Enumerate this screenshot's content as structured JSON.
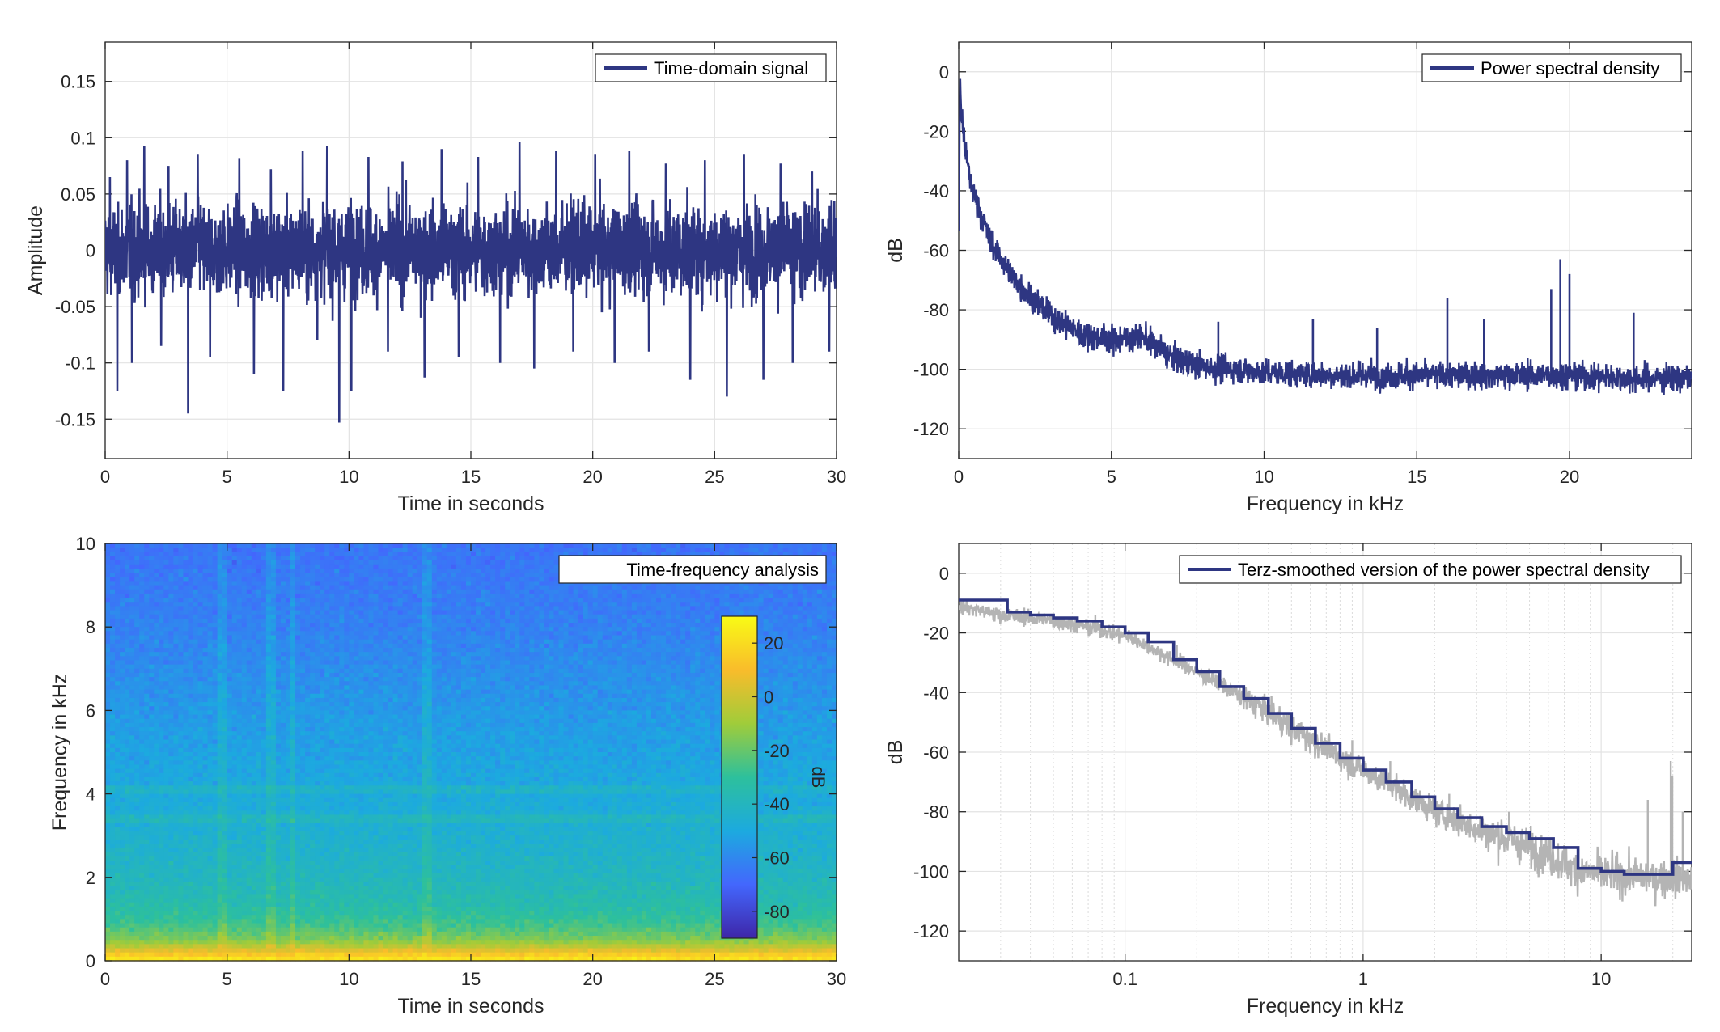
{
  "chart_data": [
    {
      "id": "time-domain",
      "type": "line",
      "xlabel": "Time in seconds",
      "ylabel": "Amplitude",
      "xlim": [
        0,
        30
      ],
      "ylim": [
        -0.185,
        0.185
      ],
      "xticks": [
        0,
        5,
        10,
        15,
        20,
        25,
        30
      ],
      "xtick_labels": [
        "0",
        "5",
        "10",
        "15",
        "20",
        "25",
        "30"
      ],
      "yticks": [
        0.15,
        0.1,
        0.05,
        0,
        -0.05,
        -0.1,
        -0.15
      ],
      "ytick_labels": [
        "0.15",
        "0.1",
        "0.05",
        "0",
        "-0.05",
        "-0.1",
        "-0.15"
      ],
      "grid": true,
      "legend": {
        "position": "top-right"
      },
      "series": [
        {
          "name": "Time-domain signal",
          "color": "#2e3682",
          "signal_std": 0.028,
          "peaks": [
            [
              0.2,
              0.065
            ],
            [
              0.5,
              -0.125
            ],
            [
              0.9,
              0.08
            ],
            [
              1.1,
              -0.1
            ],
            [
              1.6,
              0.093
            ],
            [
              2.3,
              -0.085
            ],
            [
              2.6,
              0.075
            ],
            [
              3.4,
              -0.145
            ],
            [
              3.8,
              0.085
            ],
            [
              4.3,
              -0.095
            ],
            [
              5.5,
              0.082
            ],
            [
              6.1,
              -0.11
            ],
            [
              6.8,
              0.072
            ],
            [
              7.3,
              -0.125
            ],
            [
              8.1,
              0.088
            ],
            [
              8.7,
              -0.08
            ],
            [
              9.1,
              0.093
            ],
            [
              9.6,
              -0.153
            ],
            [
              10.1,
              -0.125
            ],
            [
              10.8,
              0.083
            ],
            [
              11.6,
              -0.09
            ],
            [
              12.2,
              0.079
            ],
            [
              13.1,
              -0.113
            ],
            [
              13.8,
              0.09
            ],
            [
              14.5,
              -0.095
            ],
            [
              15.3,
              0.083
            ],
            [
              16.2,
              -0.1
            ],
            [
              17.0,
              0.096
            ],
            [
              17.6,
              -0.105
            ],
            [
              18.5,
              0.088
            ],
            [
              19.2,
              -0.09
            ],
            [
              20.1,
              0.085
            ],
            [
              20.9,
              -0.1
            ],
            [
              21.5,
              0.088
            ],
            [
              22.3,
              -0.09
            ],
            [
              23.0,
              0.077
            ],
            [
              24.0,
              -0.115
            ],
            [
              24.6,
              0.08
            ],
            [
              25.5,
              -0.13
            ],
            [
              26.2,
              0.085
            ],
            [
              27.0,
              -0.115
            ],
            [
              27.7,
              0.077
            ],
            [
              28.2,
              -0.1
            ],
            [
              29.0,
              0.07
            ],
            [
              29.7,
              -0.09
            ]
          ]
        }
      ]
    },
    {
      "id": "psd",
      "type": "line",
      "xlabel": "Frequency in kHz",
      "ylabel": "dB",
      "xlim": [
        0,
        24
      ],
      "ylim": [
        -130,
        10
      ],
      "xticks": [
        0,
        5,
        10,
        15,
        20
      ],
      "xtick_labels": [
        "0",
        "5",
        "10",
        "15",
        "20"
      ],
      "yticks": [
        0,
        -20,
        -40,
        -60,
        -80,
        -100,
        -120
      ],
      "ytick_labels": [
        "0",
        "-20",
        "-40",
        "-60",
        "-80",
        "-100",
        "-120"
      ],
      "grid": true,
      "legend": {
        "position": "top-right"
      },
      "series": [
        {
          "name": "Power spectral density",
          "color": "#2e3682",
          "envelope": [
            [
              0.0,
              -50
            ],
            [
              0.05,
              -5
            ],
            [
              0.1,
              -15
            ],
            [
              0.2,
              -25
            ],
            [
              0.4,
              -38
            ],
            [
              0.7,
              -47
            ],
            [
              1.0,
              -56
            ],
            [
              1.5,
              -65
            ],
            [
              2.0,
              -72
            ],
            [
              3.0,
              -82
            ],
            [
              4.0,
              -88
            ],
            [
              5.0,
              -90
            ],
            [
              6.0,
              -89
            ],
            [
              7.0,
              -96
            ],
            [
              8.0,
              -99
            ],
            [
              10.0,
              -101
            ],
            [
              12.0,
              -102
            ],
            [
              15.0,
              -102
            ],
            [
              18.0,
              -102
            ],
            [
              20.0,
              -102
            ],
            [
              22.0,
              -103
            ],
            [
              24.0,
              -103
            ]
          ],
          "spikes": [
            [
              3.5,
              -80
            ],
            [
              8.5,
              -84
            ],
            [
              11.6,
              -83
            ],
            [
              13.7,
              -86
            ],
            [
              16.0,
              -76
            ],
            [
              17.2,
              -83
            ],
            [
              19.4,
              -73
            ],
            [
              19.7,
              -63
            ],
            [
              20.0,
              -68
            ],
            [
              22.1,
              -81
            ]
          ]
        }
      ]
    },
    {
      "id": "spectrogram",
      "type": "heatmap",
      "xlabel": "Time in seconds",
      "ylabel": "Frequency in kHz",
      "xlim": [
        0,
        30
      ],
      "ylim": [
        0,
        10
      ],
      "xticks": [
        0,
        5,
        10,
        15,
        20,
        25,
        30
      ],
      "xtick_labels": [
        "0",
        "5",
        "10",
        "15",
        "20",
        "25",
        "30"
      ],
      "yticks": [
        10,
        8,
        6,
        4,
        2,
        0
      ],
      "ytick_labels": [
        "10",
        "8",
        "6",
        "4",
        "2",
        "0"
      ],
      "legend": {
        "position": "top-right"
      },
      "legend_label": "Time-frequency analysis",
      "colorbar": {
        "label": "dB",
        "range": [
          -90,
          30
        ],
        "ticks": [
          20,
          0,
          -20,
          -40,
          -60,
          -80
        ],
        "tick_labels": [
          "20",
          "0",
          "-20",
          "-40",
          "-60",
          "-80"
        ],
        "colormap": [
          "#3e26a8",
          "#4367fd",
          "#1caadf",
          "#2dc09c",
          "#a0cc3a",
          "#f9bc2b",
          "#f9fb15"
        ]
      },
      "level_profile": [
        [
          0.0,
          25
        ],
        [
          0.15,
          15
        ],
        [
          0.3,
          0
        ],
        [
          0.5,
          -15
        ],
        [
          0.8,
          -25
        ],
        [
          1.2,
          -33
        ],
        [
          2.0,
          -40
        ],
        [
          3.0,
          -45
        ],
        [
          4.0,
          -49
        ],
        [
          6.0,
          -55
        ],
        [
          8.0,
          -62
        ],
        [
          10.0,
          -66
        ]
      ],
      "vertical_streaks": [
        6.8,
        4.8,
        7.7,
        13.2
      ],
      "horizontal_bands": [
        4.1,
        3.4
      ]
    },
    {
      "id": "terz",
      "type": "line",
      "xlabel": "Frequency in kHz",
      "ylabel": "dB",
      "xscale": "log",
      "xlim": [
        0.02,
        24
      ],
      "ylim": [
        -130,
        10
      ],
      "xticks": [
        0.1,
        1,
        10
      ],
      "xtick_labels": [
        "0.1",
        "1",
        "10"
      ],
      "yticks": [
        0,
        -20,
        -40,
        -60,
        -80,
        -100,
        -120
      ],
      "ytick_labels": [
        "0",
        "-20",
        "-40",
        "-60",
        "-80",
        "-100",
        "-120"
      ],
      "grid": true,
      "legend": {
        "position": "top-right"
      },
      "series": [
        {
          "name": "Terz-smoothed version of the power spectral density",
          "color": "#2e3682",
          "steps": [
            [
              0.02,
              -9
            ],
            [
              0.025,
              -9
            ],
            [
              0.032,
              -13
            ],
            [
              0.04,
              -14
            ],
            [
              0.05,
              -15
            ],
            [
              0.063,
              -16
            ],
            [
              0.08,
              -18
            ],
            [
              0.1,
              -20
            ],
            [
              0.125,
              -23
            ],
            [
              0.16,
              -29
            ],
            [
              0.2,
              -33
            ],
            [
              0.25,
              -38
            ],
            [
              0.315,
              -42
            ],
            [
              0.4,
              -47
            ],
            [
              0.5,
              -52
            ],
            [
              0.63,
              -57
            ],
            [
              0.8,
              -62
            ],
            [
              1.0,
              -66
            ],
            [
              1.25,
              -70
            ],
            [
              1.6,
              -75
            ],
            [
              2.0,
              -79
            ],
            [
              2.5,
              -82
            ],
            [
              3.15,
              -85
            ],
            [
              4.0,
              -87
            ],
            [
              5.0,
              -89
            ],
            [
              6.3,
              -92
            ],
            [
              8.0,
              -99
            ],
            [
              10.0,
              -100
            ],
            [
              12.5,
              -101
            ],
            [
              16.0,
              -101
            ],
            [
              20.0,
              -97
            ],
            [
              24.0,
              -97
            ]
          ]
        },
        {
          "color": "#b4b4b4",
          "envelope": [
            [
              0.02,
              -11
            ],
            [
              0.03,
              -14
            ],
            [
              0.05,
              -16
            ],
            [
              0.08,
              -19
            ],
            [
              0.1,
              -21
            ],
            [
              0.15,
              -28
            ],
            [
              0.2,
              -33
            ],
            [
              0.3,
              -41
            ],
            [
              0.5,
              -52
            ],
            [
              0.8,
              -62
            ],
            [
              1.0,
              -66
            ],
            [
              1.5,
              -74
            ],
            [
              2.0,
              -80
            ],
            [
              3.0,
              -86
            ],
            [
              5.0,
              -92
            ],
            [
              8.0,
              -100
            ],
            [
              10.0,
              -101
            ],
            [
              15.0,
              -102
            ],
            [
              20.0,
              -102
            ],
            [
              24.0,
              -103
            ]
          ],
          "spikes": [
            [
              0.075,
              -14
            ],
            [
              0.11,
              -20
            ],
            [
              0.165,
              -24
            ],
            [
              0.26,
              -35
            ],
            [
              0.55,
              -50
            ],
            [
              0.9,
              -56
            ],
            [
              1.3,
              -63
            ],
            [
              2.3,
              -74
            ],
            [
              4.1,
              -80
            ],
            [
              15.7,
              -76
            ],
            [
              19.6,
              -63
            ],
            [
              19.9,
              -68
            ],
            [
              22.0,
              -80
            ]
          ]
        }
      ]
    }
  ]
}
